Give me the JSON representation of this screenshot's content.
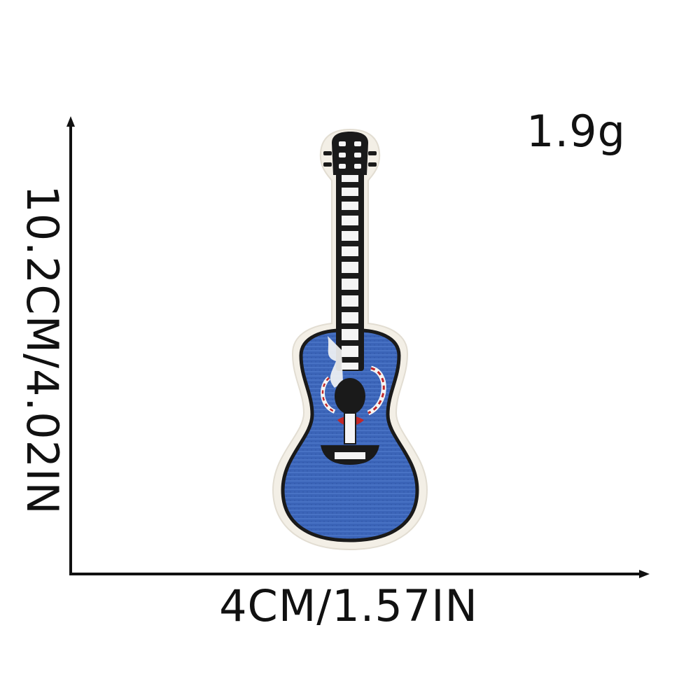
{
  "product": {
    "name": "guitar-patch",
    "weight": "1.9g",
    "width_label": "4CM/1.57IN",
    "height_label": "10.2CM/4.02IN"
  },
  "colors": {
    "body_blue": "#3b64b8",
    "outline_black": "#1a1a1a",
    "patch_border": "#f3efe6",
    "accent_red": "#c0282a"
  }
}
